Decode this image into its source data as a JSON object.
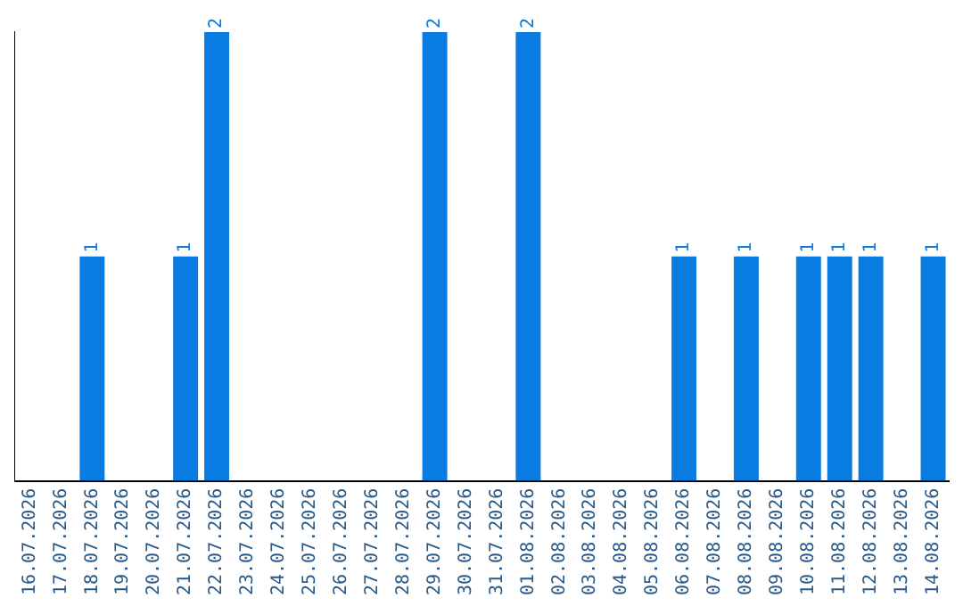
{
  "chart_data": {
    "type": "bar",
    "categories": [
      "16.07.2026",
      "17.07.2026",
      "18.07.2026",
      "19.07.2026",
      "20.07.2026",
      "21.07.2026",
      "22.07.2026",
      "23.07.2026",
      "24.07.2026",
      "25.07.2026",
      "26.07.2026",
      "27.07.2026",
      "28.07.2026",
      "29.07.2026",
      "30.07.2026",
      "31.07.2026",
      "01.08.2026",
      "02.08.2026",
      "03.08.2026",
      "04.08.2026",
      "05.08.2026",
      "06.08.2026",
      "07.08.2026",
      "08.08.2026",
      "09.08.2026",
      "10.08.2026",
      "11.08.2026",
      "12.08.2026",
      "13.08.2026",
      "14.08.2026"
    ],
    "values": [
      0,
      0,
      1,
      0,
      0,
      1,
      2,
      0,
      0,
      0,
      0,
      0,
      0,
      2,
      0,
      0,
      2,
      0,
      0,
      0,
      0,
      1,
      0,
      1,
      0,
      1,
      1,
      1,
      0,
      1
    ],
    "value_labels": [
      null,
      null,
      "1",
      null,
      null,
      "1",
      "2",
      null,
      null,
      null,
      null,
      null,
      null,
      "2",
      null,
      null,
      "2",
      null,
      null,
      null,
      null,
      "1",
      null,
      "1",
      null,
      "1",
      "1",
      "1",
      null,
      "1"
    ],
    "color": "#0a7be0",
    "tick_labels": "x",
    "grid": false,
    "legend": false
  }
}
